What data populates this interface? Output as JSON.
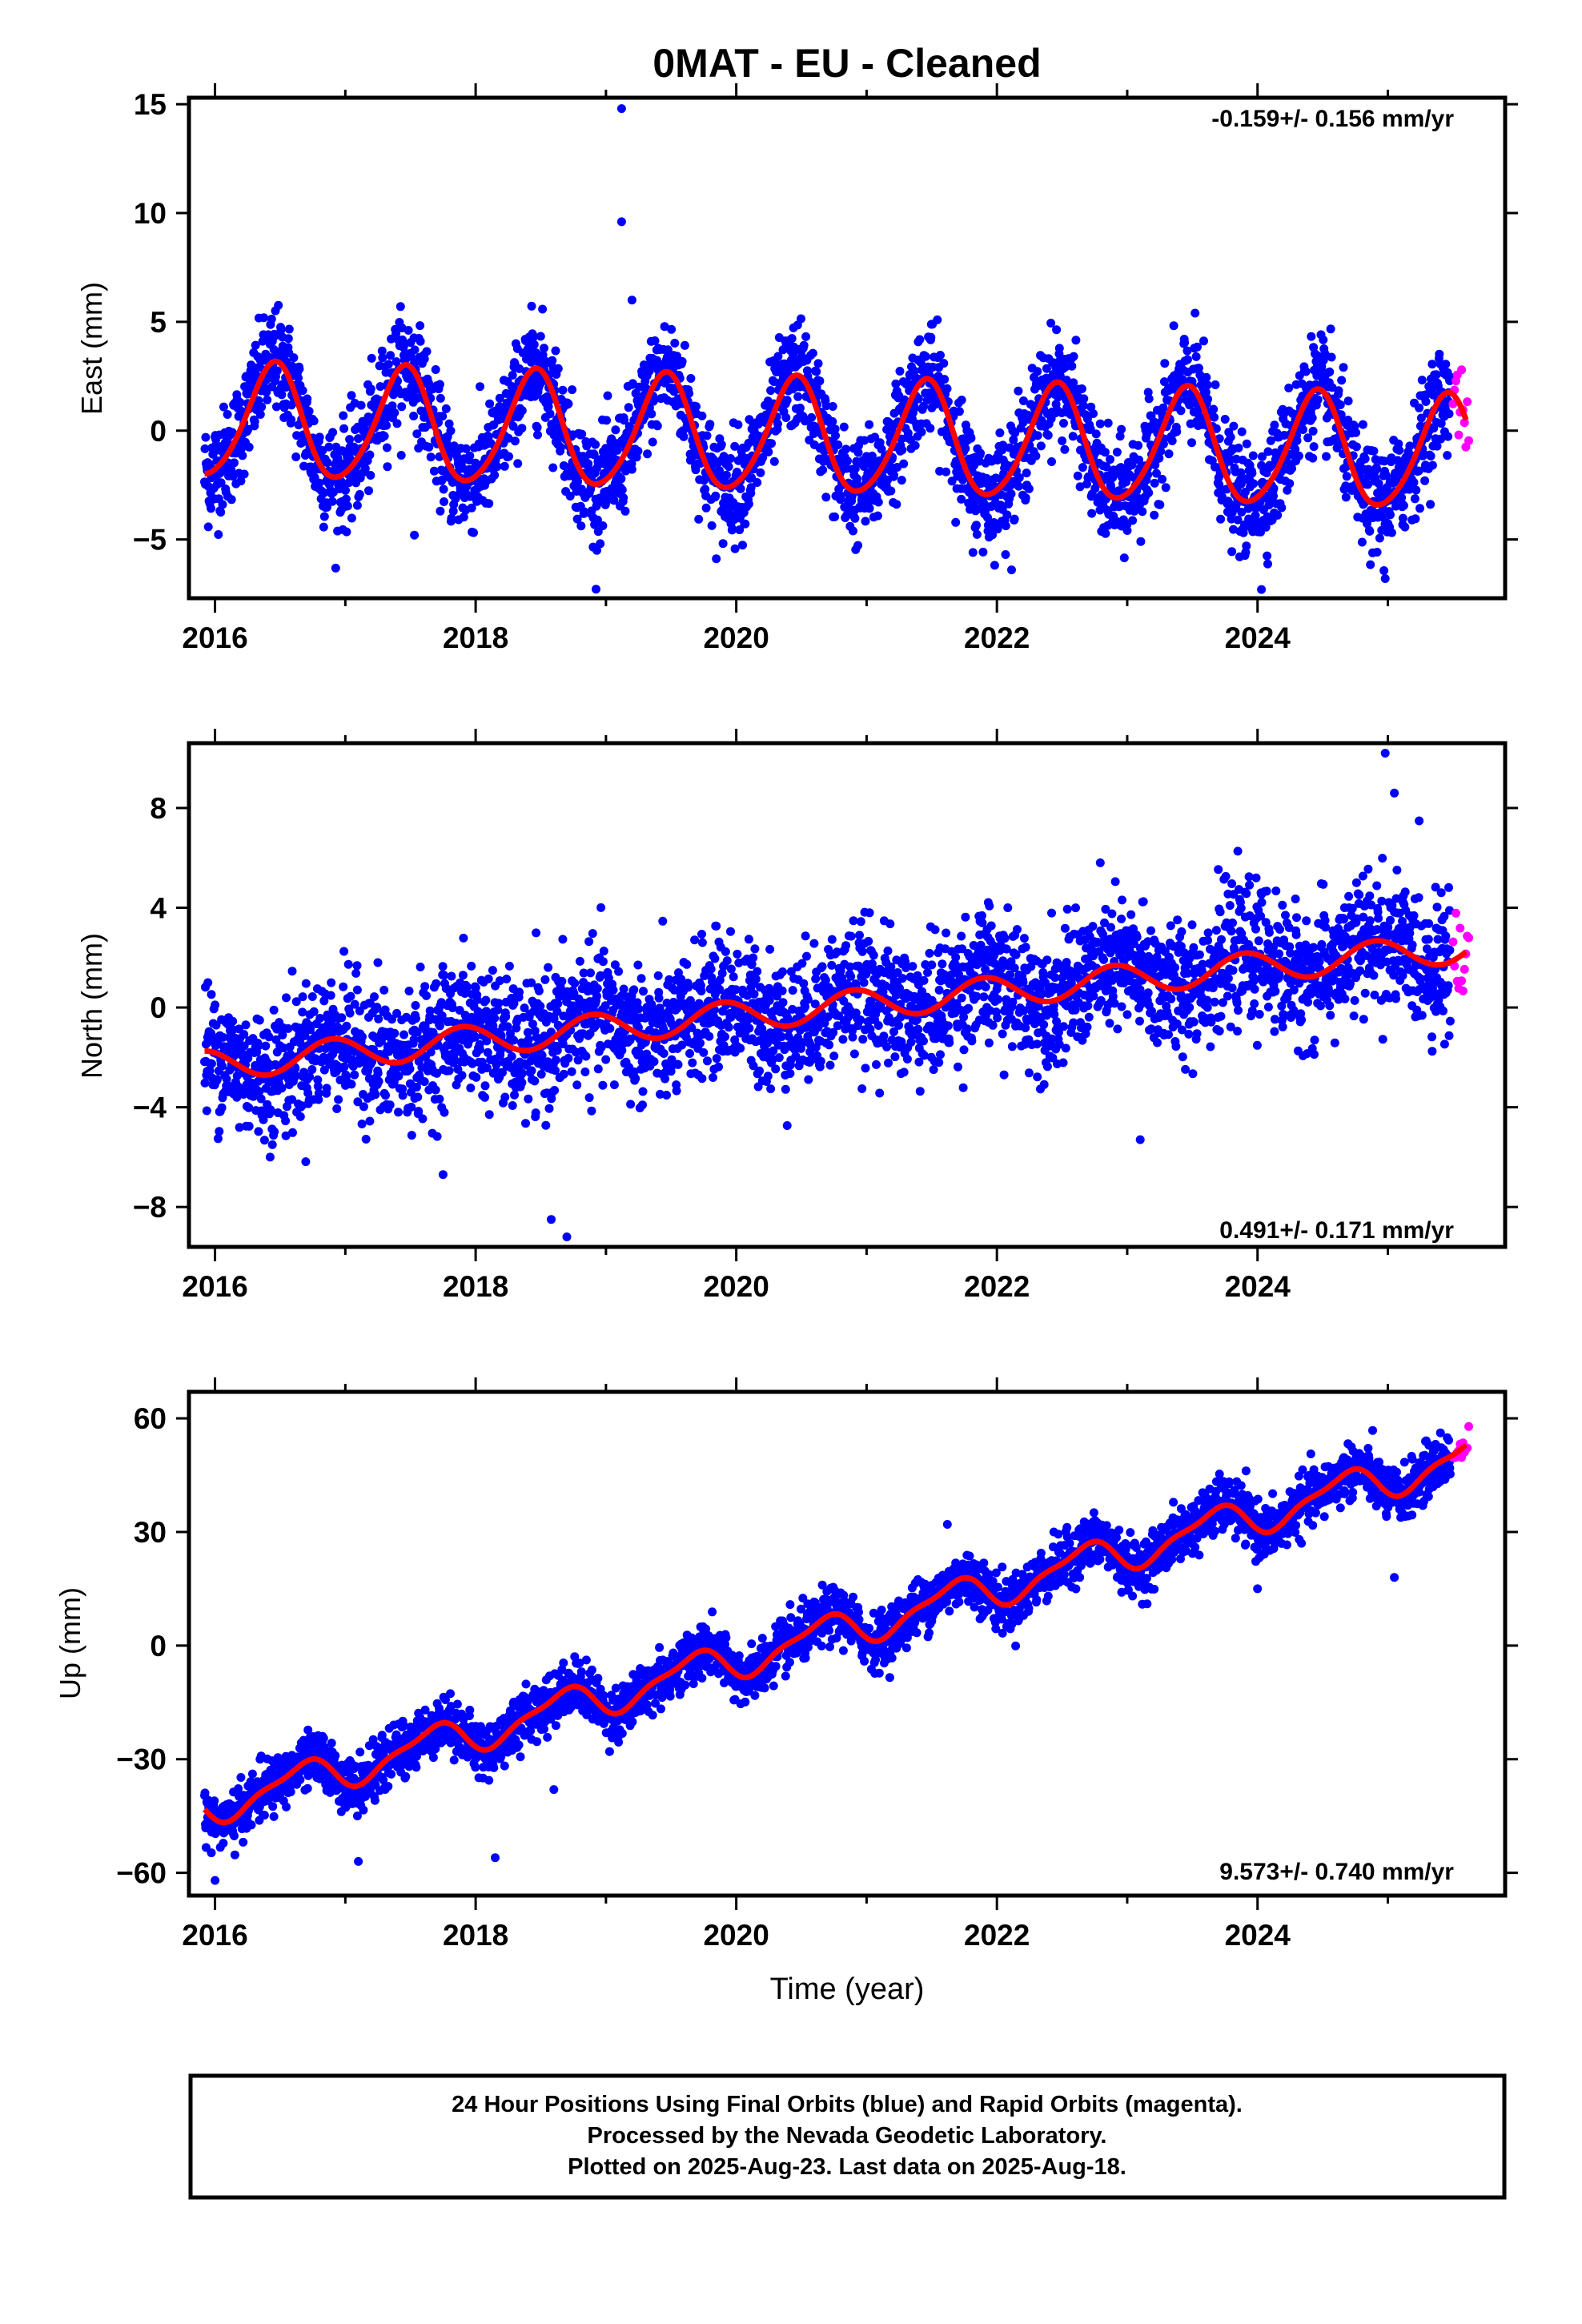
{
  "title": "0MAT  - EU - Cleaned",
  "xlabel": "Time (year)",
  "footer": {
    "line1": "24 Hour Positions Using Final Orbits (blue) and Rapid Orbits (magenta).",
    "line2": "Processed by the Nevada Geodetic Laboratory.",
    "line3": "Plotted on 2025-Aug-23. Last data on 2025-Aug-18."
  },
  "colors": {
    "final_orbits": "#0000ff",
    "rapid_orbits": "#ff00ff",
    "model": "#ff0000"
  },
  "chart_data": [
    {
      "type": "scatter",
      "ylabel": "East (mm)",
      "rate_label": "-0.159+/- 0.156 mm/yr",
      "rate_position": "top-right",
      "xlim": [
        2015.8,
        2025.9
      ],
      "ylim": [
        -7.7,
        15.3
      ],
      "xticks": [
        2016,
        2018,
        2020,
        2022,
        2024
      ],
      "yticks": [
        -5,
        0,
        5,
        10,
        15
      ],
      "model": {
        "offset": 0.4,
        "rate": -0.159,
        "annual_amp": 2.6,
        "peak_phase": 0.45,
        "semiannual_amp": 0.3,
        "semiannual_phase": 0.0
      },
      "series": [
        {
          "name": "Final Orbits",
          "color": "#0000ff",
          "span": [
            2015.92,
            2025.48
          ],
          "scatter_sd": 1.2,
          "outliers": [
            [
              2019.12,
              14.8
            ],
            [
              2019.12,
              9.6
            ],
            [
              2019.2,
              6.0
            ],
            [
              2024.03,
              -7.3
            ],
            [
              2018.93,
              -5.5
            ],
            [
              2024.98,
              -6.8
            ],
            [
              2017.53,
              -4.8
            ]
          ]
        },
        {
          "name": "Rapid Orbits",
          "color": "#ff00ff",
          "span": [
            2025.5,
            2025.63
          ],
          "scatter_sd": 1.0
        }
      ]
    },
    {
      "type": "scatter",
      "ylabel": "North (mm)",
      "rate_label": "0.491+/- 0.171 mm/yr",
      "rate_position": "bottom-right",
      "xlim": [
        2015.8,
        2025.9
      ],
      "ylim": [
        -9.6,
        10.6
      ],
      "xticks": [
        2016,
        2018,
        2020,
        2022,
        2024
      ],
      "yticks": [
        -8,
        -4,
        0,
        4,
        8
      ],
      "model": {
        "offset": -2.3,
        "rate": 0.491,
        "annual_amp": 0.6,
        "peak_phase": 0.9,
        "semiannual_amp": 0.0,
        "semiannual_phase": 0.0
      },
      "series": [
        {
          "name": "Final Orbits",
          "color": "#0000ff",
          "span": [
            2015.92,
            2025.48
          ],
          "scatter_sd": 1.3,
          "outliers": [
            [
              2018.58,
              -8.5
            ],
            [
              2018.7,
              -9.2
            ],
            [
              2023.1,
              -5.3
            ],
            [
              2024.98,
              10.2
            ],
            [
              2025.05,
              8.6
            ],
            [
              2017.75,
              -6.7
            ],
            [
              2017.25,
              1.8
            ]
          ]
        },
        {
          "name": "Rapid Orbits",
          "color": "#ff00ff",
          "span": [
            2025.5,
            2025.63
          ],
          "scatter_sd": 1.5
        }
      ]
    },
    {
      "type": "scatter",
      "ylabel": "Up (mm)",
      "rate_label": "9.573+/- 0.740 mm/yr",
      "rate_position": "bottom-right",
      "xlim": [
        2015.8,
        2025.9
      ],
      "ylim": [
        -66,
        67
      ],
      "xticks": [
        2016,
        2018,
        2020,
        2022,
        2024
      ],
      "yticks": [
        -60,
        -30,
        0,
        30,
        60
      ],
      "model": {
        "offset": -42,
        "rate": 9.573,
        "annual_amp": 4.5,
        "peak_phase": 0.65,
        "semiannual_amp": 1.5,
        "semiannual_phase": 0.3
      },
      "series": [
        {
          "name": "Final Orbits",
          "color": "#0000ff",
          "span": [
            2015.92,
            2025.48
          ],
          "scatter_sd": 3.5,
          "outliers": [
            [
              2016.0,
              -62
            ],
            [
              2018.15,
              -56
            ],
            [
              2017.1,
              -57
            ],
            [
              2024.0,
              15
            ],
            [
              2025.05,
              18
            ],
            [
              2021.62,
              32
            ],
            [
              2018.6,
              -38
            ]
          ]
        },
        {
          "name": "Rapid Orbits",
          "color": "#ff00ff",
          "span": [
            2025.5,
            2025.63
          ],
          "scatter_sd": 3.0
        }
      ]
    }
  ]
}
